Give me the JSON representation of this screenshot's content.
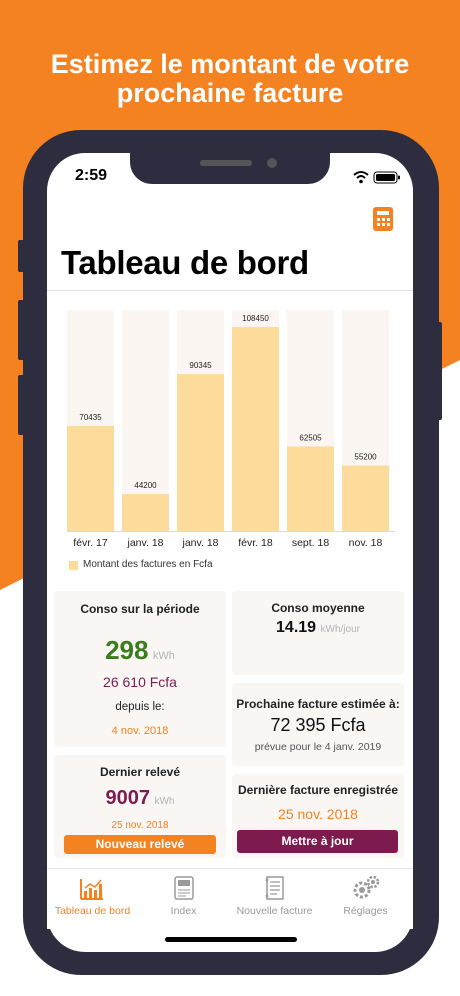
{
  "headline": {
    "line1": "Estimez le montant de votre",
    "line2": "prochaine facture"
  },
  "colors": {
    "brand_orange": "#f58220",
    "bar": "#fddb9a",
    "bar_track": "#fbf6f2",
    "accent_green": "#3a7d1c",
    "accent_plum": "#7d1b4f"
  },
  "status_bar": {
    "time": "2:59"
  },
  "header": {
    "calculator_icon": "calculator-icon",
    "title": "Tableau de bord"
  },
  "chart_data": {
    "type": "bar",
    "categories": [
      "févr. 17",
      "janv. 18",
      "janv. 18",
      "févr. 18",
      "sept. 18",
      "nov. 18"
    ],
    "values": [
      70435,
      44200,
      90345,
      108450,
      62505,
      55200
    ],
    "value_labels": [
      "70435",
      "44200",
      "90345",
      "108450",
      "62505",
      "55200"
    ],
    "legend": "Montant des factures en Fcfa",
    "ylim": [
      30000,
      115000
    ],
    "grid": false
  },
  "cards": {
    "conso_periode": {
      "title": "Conso sur la période",
      "kwh_value": "298",
      "kwh_unit": "kWh",
      "amount": "26 610 Fcfa",
      "since_label": "depuis le:",
      "since_date": "4 nov. 2018"
    },
    "conso_moyenne": {
      "title": "Conso moyenne",
      "value": "14.19",
      "unit": "kWh/jour"
    },
    "dernier_releve": {
      "title": "Dernier relevé",
      "value": "9007",
      "unit": "kWh",
      "date": "25 nov. 2018",
      "button": "Nouveau relevé"
    },
    "prochaine_facture": {
      "title": "Prochaine facture estimée à:",
      "amount": "72 395 Fcfa",
      "subtitle": "prévue pour le 4 janv. 2019"
    },
    "derniere_facture": {
      "title": "Dernière facture enregistrée",
      "date": "25 nov. 2018",
      "button": "Mettre à jour"
    }
  },
  "tabs": [
    {
      "label": "Tableau de bord",
      "icon": "bar-chart-icon",
      "active": true
    },
    {
      "label": "Index",
      "icon": "meter-icon",
      "active": false
    },
    {
      "label": "Nouvelle facture",
      "icon": "invoice-icon",
      "active": false
    },
    {
      "label": "Réglages",
      "icon": "gears-icon",
      "active": false
    }
  ]
}
